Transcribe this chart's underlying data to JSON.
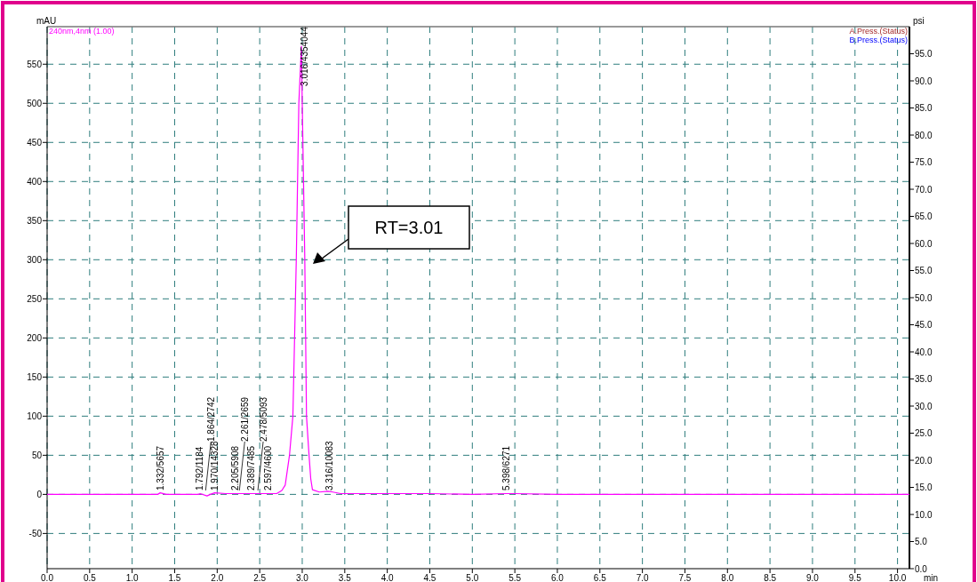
{
  "chart_data": {
    "type": "line",
    "xlabel": "min",
    "ylabel": "mAU",
    "y2label": "psi",
    "xlim": [
      0,
      10.14
    ],
    "ylim": [
      -95,
      598
    ],
    "y2lim": [
      0,
      100
    ],
    "xticks": [
      {
        "value": 0,
        "label": "0.0"
      },
      {
        "value": 0.5,
        "label": "0.5"
      },
      {
        "value": 1,
        "label": "1.0"
      },
      {
        "value": 1.5,
        "label": "1.5"
      },
      {
        "value": 2,
        "label": "2.0"
      },
      {
        "value": 2.5,
        "label": "2.5"
      },
      {
        "value": 3,
        "label": "3.0"
      },
      {
        "value": 3.5,
        "label": "3.5"
      },
      {
        "value": 4,
        "label": "4.0"
      },
      {
        "value": 4.5,
        "label": "4.5"
      },
      {
        "value": 5,
        "label": "5.0"
      },
      {
        "value": 5.5,
        "label": "5.5"
      },
      {
        "value": 6,
        "label": "6.0"
      },
      {
        "value": 6.5,
        "label": "6.5"
      },
      {
        "value": 7,
        "label": "7.0"
      },
      {
        "value": 7.5,
        "label": "7.5"
      },
      {
        "value": 8,
        "label": "8.0"
      },
      {
        "value": 8.5,
        "label": "8.5"
      },
      {
        "value": 9,
        "label": "9.0"
      },
      {
        "value": 9.5,
        "label": "9.5"
      },
      {
        "value": 10,
        "label": "10.0"
      }
    ],
    "yticks": [
      -50,
      0,
      50,
      100,
      150,
      200,
      250,
      300,
      350,
      400,
      450,
      500,
      550
    ],
    "y2ticks": [
      {
        "value": 0,
        "label": "0.0"
      },
      {
        "value": 5,
        "label": "5.0"
      },
      {
        "value": 10,
        "label": "10.0"
      },
      {
        "value": 15,
        "label": "15.0"
      },
      {
        "value": 20,
        "label": "20.0"
      },
      {
        "value": 25,
        "label": "25.0"
      },
      {
        "value": 30,
        "label": "30.0"
      },
      {
        "value": 35,
        "label": "35.0"
      },
      {
        "value": 40,
        "label": "40.0"
      },
      {
        "value": 45,
        "label": "45.0"
      },
      {
        "value": 50,
        "label": "50.0"
      },
      {
        "value": 55,
        "label": "55.0"
      },
      {
        "value": 60,
        "label": "60.0"
      },
      {
        "value": 65,
        "label": "65.0"
      },
      {
        "value": 70,
        "label": "70.0"
      },
      {
        "value": 75,
        "label": "75.0"
      },
      {
        "value": 80,
        "label": "80.0"
      },
      {
        "value": 85,
        "label": "85.0"
      },
      {
        "value": 90,
        "label": "90.0"
      },
      {
        "value": 95,
        "label": "95.0"
      }
    ],
    "grid": true,
    "legend": "top left",
    "marker": "none",
    "line_style": "solid",
    "series": [
      {
        "name": "240nm,4nm (1.00)",
        "color": "#ff00ff",
        "x": [
          0,
          0.5,
          1,
          1.3,
          1.33,
          1.4,
          1.78,
          1.8,
          1.88,
          1.92,
          1.97,
          2.1,
          2.3,
          2.5,
          2.6,
          2.7,
          2.76,
          2.8,
          2.85,
          2.89,
          2.93,
          2.96,
          2.99,
          3.0,
          3.03,
          3.05,
          3.08,
          3.1,
          3.12,
          3.2,
          3.3,
          3.36,
          3.45,
          3.6,
          4.5,
          5,
          5.4,
          5.5,
          6,
          10.14
        ],
        "values": [
          0,
          0,
          0,
          0,
          2,
          0,
          0,
          1,
          -2,
          0,
          2,
          1,
          1,
          1,
          1,
          1,
          5,
          12,
          50,
          100,
          300,
          500,
          573,
          500,
          300,
          100,
          50,
          20,
          6,
          3,
          4,
          3,
          1,
          1,
          1,
          0,
          1,
          1,
          0,
          0
        ]
      }
    ],
    "annotations": [
      {
        "text": "1.332/5657",
        "x": 1.332,
        "y": 5
      },
      {
        "text": "1.792/1184",
        "x": 1.792,
        "y": 5
      },
      {
        "text": "1.864/2742",
        "x": 1.864,
        "y": 5
      },
      {
        "text": "1.970/14328",
        "x": 1.97,
        "y": 5
      },
      {
        "text": "2.205/5908",
        "x": 2.205,
        "y": 5
      },
      {
        "text": "2.261/2659",
        "x": 2.261,
        "y": 5
      },
      {
        "text": "2.389/7485",
        "x": 2.389,
        "y": 5
      },
      {
        "text": "2.478/5093",
        "x": 2.478,
        "y": 5
      },
      {
        "text": "2.597/4600",
        "x": 2.597,
        "y": 5
      },
      {
        "text": "3.016/4354044",
        "x": 3.016,
        "y": 522
      },
      {
        "text": "3.316/10083",
        "x": 3.316,
        "y": 5
      },
      {
        "text": "5.398/6271",
        "x": 5.398,
        "y": 5
      },
      "RT=3.01",
      "A.Press.(Status)",
      "B.Press.(Status)"
    ]
  }
}
